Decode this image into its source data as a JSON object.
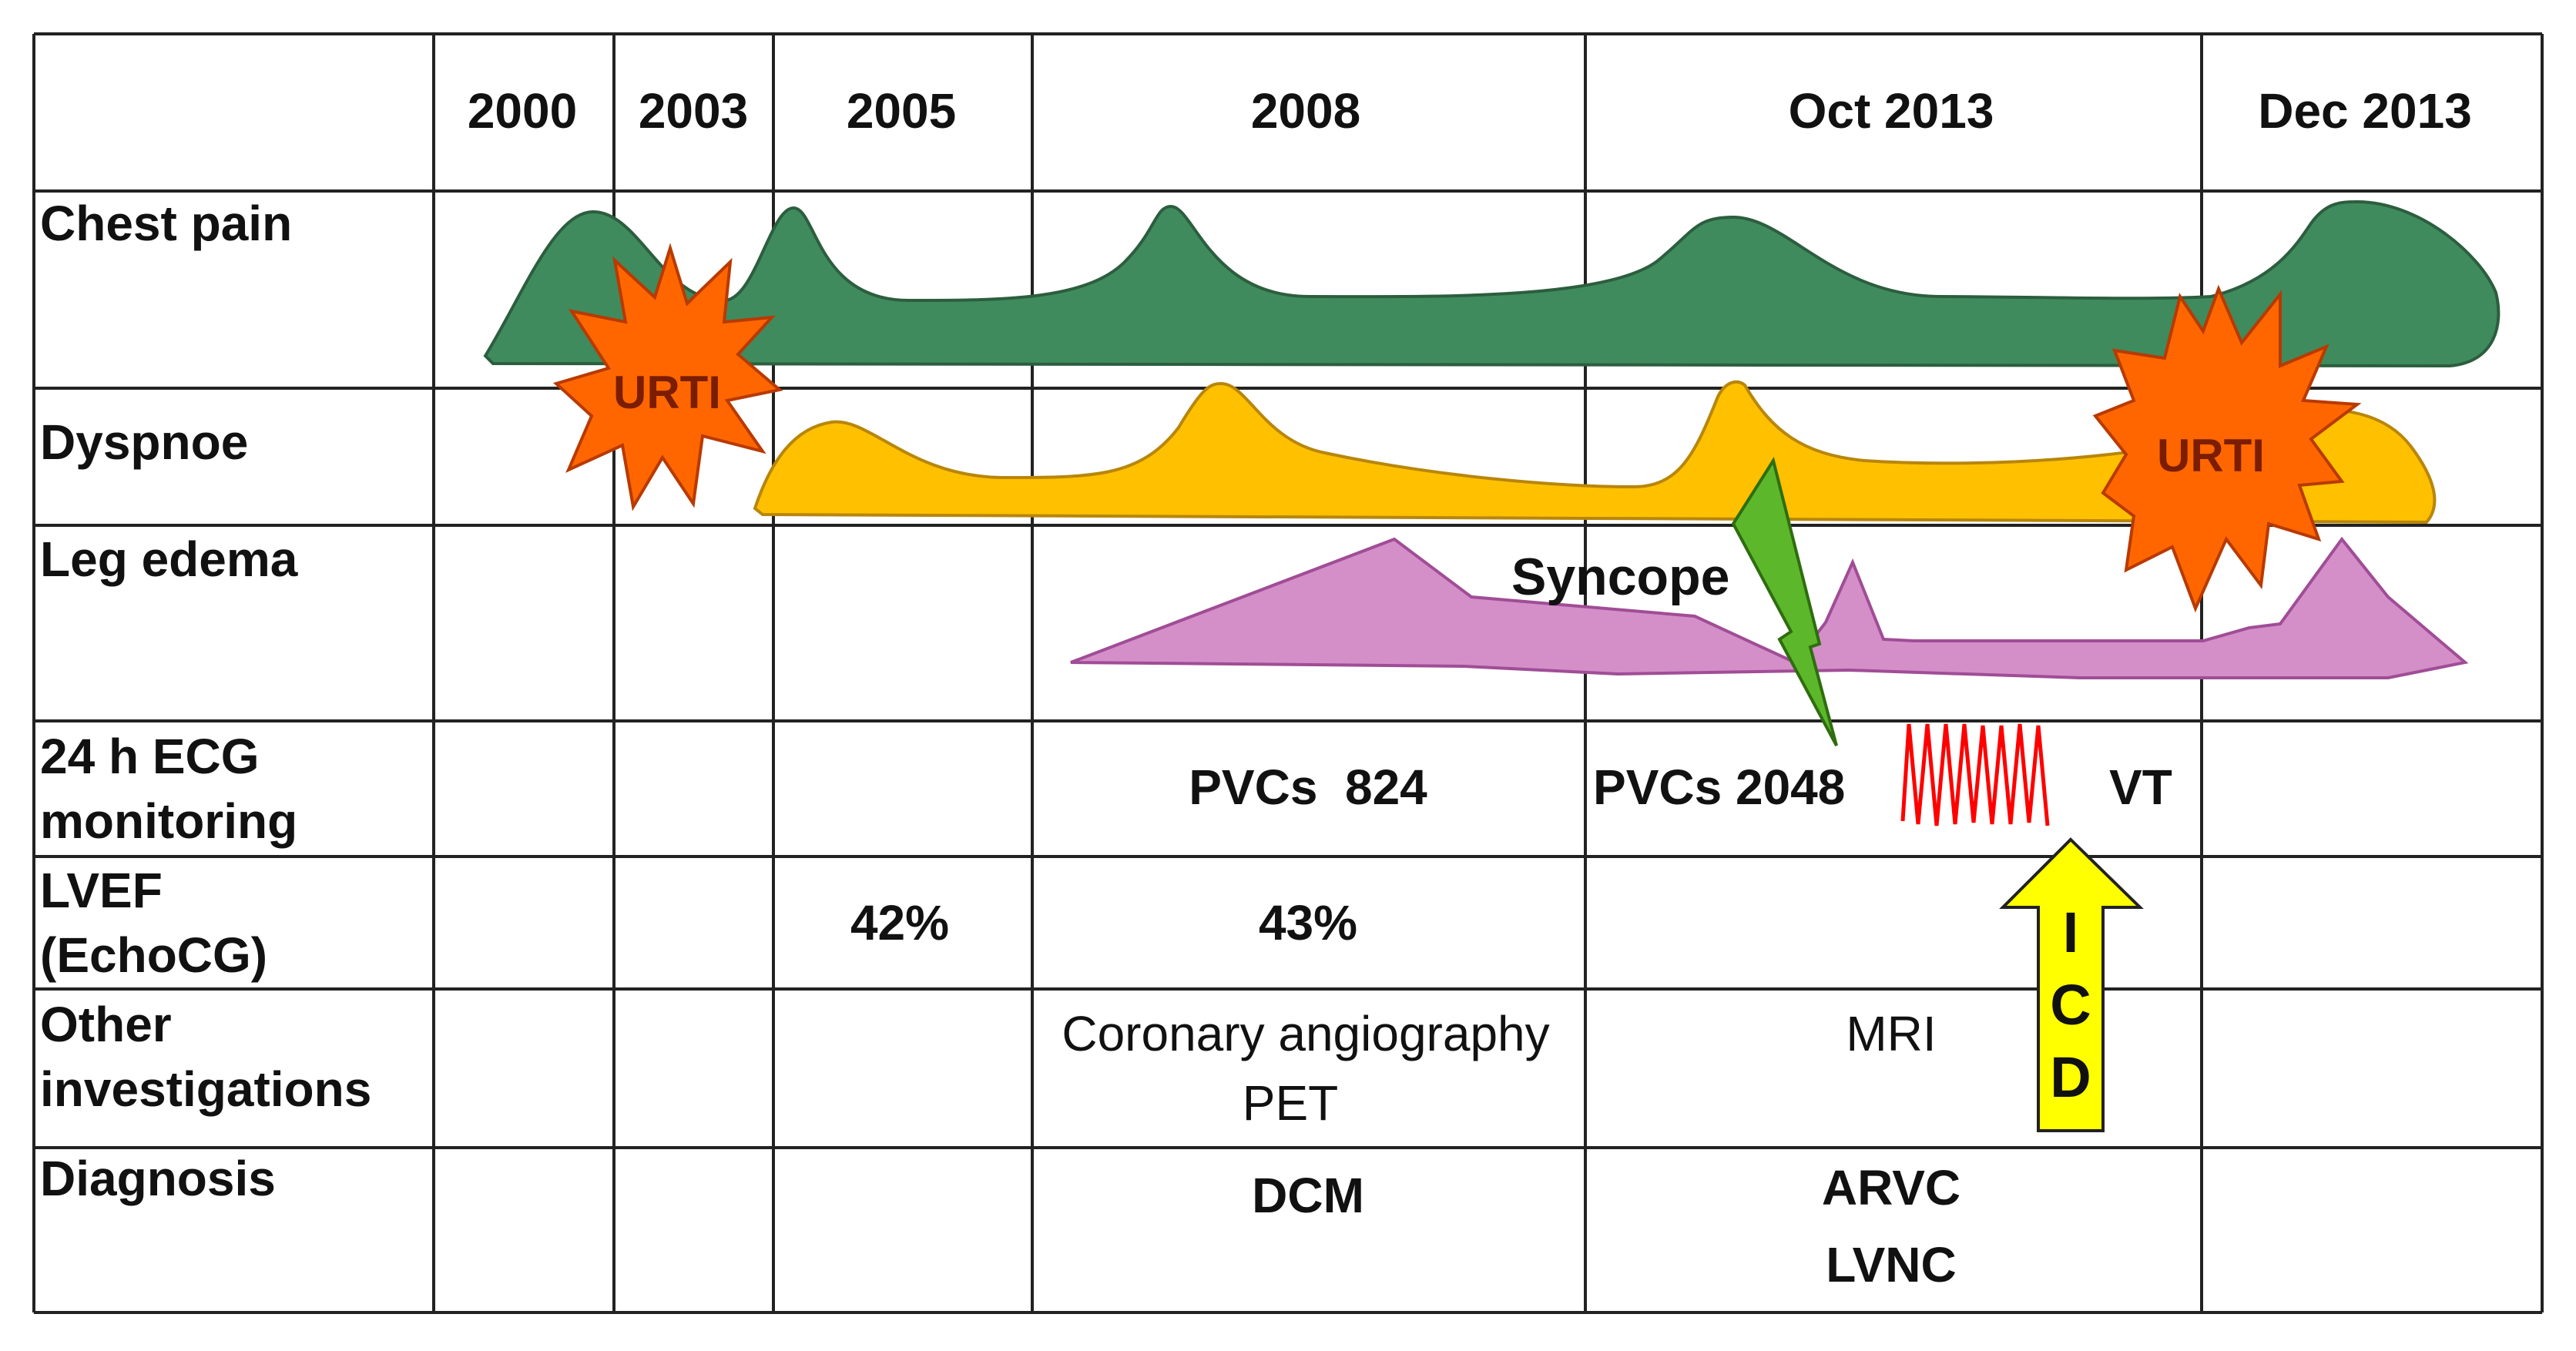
{
  "figure": {
    "years": [
      "2000",
      "2003",
      "2005",
      "2008",
      "Oct 2013",
      "Dec 2013"
    ],
    "rows": {
      "chest_pain": "Chest pain",
      "dyspnoe": "Dyspnoe",
      "leg_edema": "Leg edema",
      "ecg_line1": "24 h ECG",
      "ecg_line2": "monitoring",
      "lvef_line1": "LVEF",
      "lvef_line2": "(EchoCG)",
      "other_line1": "Other",
      "other_line2": "investigations",
      "diagnosis": "Diagnosis"
    },
    "cells": {
      "pvcs_2008": "PVCs  824",
      "pvcs_2013": "PVCs 2048",
      "vt": "VT",
      "lvef_2005": "42%",
      "lvef_2008": "43%",
      "angio": "Coronary angiography",
      "pet": "PET",
      "mri": "MRI",
      "dcm": "DCM",
      "arvc": "ARVC",
      "lvnc": "LVNC"
    },
    "events": {
      "urti_1": "URTI",
      "urti_2": "URTI",
      "syncope": "Syncope",
      "icd_1": "I",
      "icd_2": "C",
      "icd_3": "D"
    },
    "colors": {
      "chest_pain": "#3f8b5e",
      "dyspnoe": "#ffc000",
      "leg_edema": "#d48fc9",
      "burst": "#ff6600",
      "bolt": "#5cb82a",
      "vt_trace": "#ff0000",
      "icd_arrow": "#ffff00"
    }
  }
}
